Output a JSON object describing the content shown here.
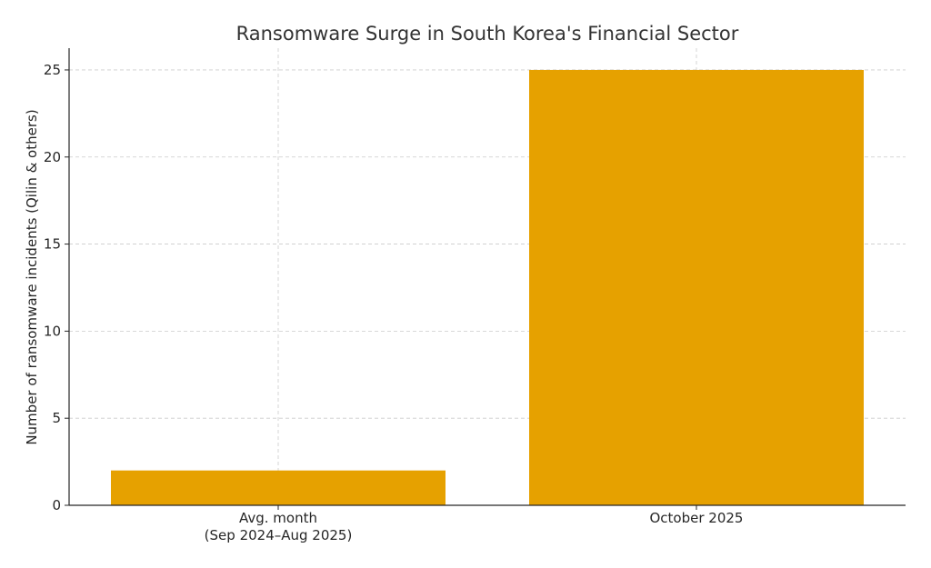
{
  "chart_data": {
    "type": "bar",
    "title": "Ransomware Surge in South Korea's Financial Sector",
    "xlabel": "",
    "ylabel": "Number of ransomware incidents (Qilin & others)",
    "categories": [
      [
        "Avg. month",
        "(Sep 2024–Aug 2025)"
      ],
      [
        "October 2025"
      ]
    ],
    "values": [
      2,
      25
    ],
    "ylim": [
      0,
      26.25
    ],
    "yticks": [
      0,
      5,
      10,
      15,
      20,
      25
    ],
    "grid": true,
    "bar_color": "#E6A100"
  }
}
